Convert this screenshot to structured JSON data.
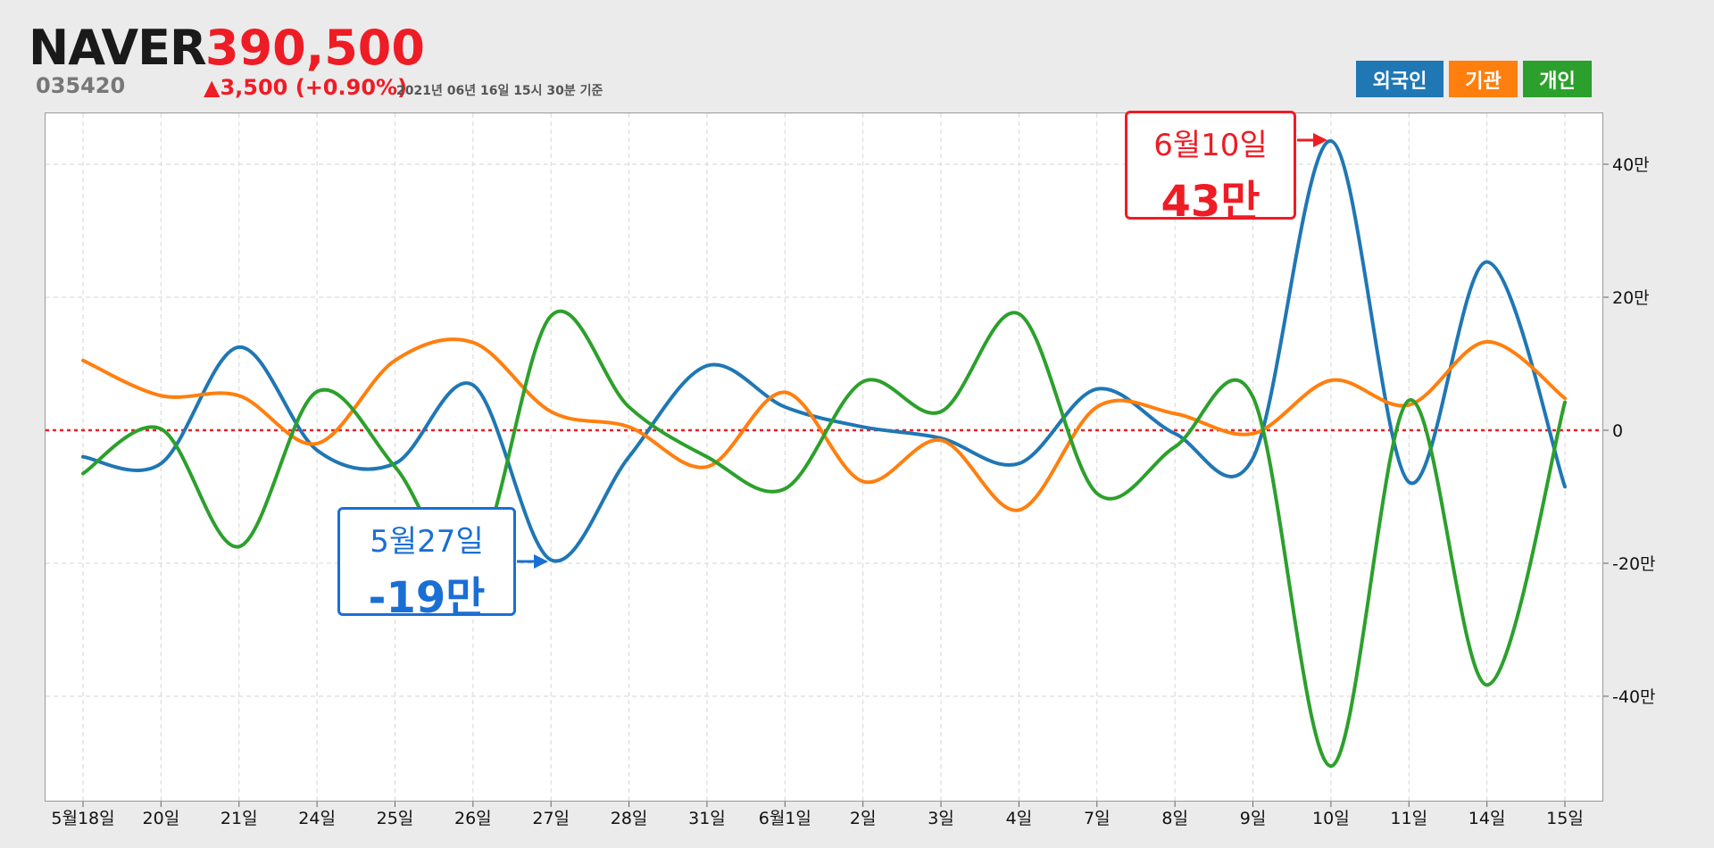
{
  "header": {
    "name": "NAVER",
    "code": "035420",
    "price": "390,500",
    "change": "▲3,500 (+0.90%)",
    "asof": "2021년 06년 16일 15시 30분 기준"
  },
  "legend": [
    {
      "label": "외국인",
      "color": "#1f77b4"
    },
    {
      "label": "기관",
      "color": "#ff7f0e"
    },
    {
      "label": "개인",
      "color": "#2ca02c"
    }
  ],
  "callouts": [
    {
      "date": "6월10일",
      "value": "43만",
      "color": "#ee1c25"
    },
    {
      "date": "5월27일",
      "value": "-19만",
      "color": "#1a6fd4"
    }
  ],
  "chart_data": {
    "type": "line",
    "categories": [
      "5월18일",
      "20일",
      "21일",
      "24일",
      "25일",
      "26일",
      "27일",
      "28일",
      "31일",
      "6월1일",
      "2일",
      "3일",
      "4일",
      "7일",
      "8일",
      "9일",
      "10일",
      "11일",
      "14일",
      "15일"
    ],
    "y_ticks": [
      {
        "value": 400000,
        "label": "40만"
      },
      {
        "value": 200000,
        "label": "20만"
      },
      {
        "value": 0,
        "label": "0"
      },
      {
        "value": -200000,
        "label": "-20만"
      },
      {
        "value": -400000,
        "label": "-40만"
      }
    ],
    "ylim": [
      -560000,
      480000
    ],
    "zero_line": {
      "color": "#ee1c25",
      "style": "dotted"
    },
    "grid": true,
    "legend_position": "top-right",
    "series": [
      {
        "name": "외국인",
        "color": "#1f77b4",
        "values": [
          -40000,
          -50000,
          125000,
          -30000,
          -50000,
          68000,
          -195000,
          -40000,
          97000,
          35000,
          5000,
          -12000,
          -50000,
          62000,
          -5000,
          -42000,
          435000,
          -78000,
          253000,
          -85000
        ]
      },
      {
        "name": "기관",
        "color": "#ff7f0e",
        "values": [
          105000,
          52000,
          52000,
          -20000,
          105000,
          132000,
          28000,
          5000,
          -55000,
          57000,
          -77000,
          -15000,
          -120000,
          35000,
          25000,
          -5000,
          75000,
          38000,
          133000,
          48000
        ]
      },
      {
        "name": "개인",
        "color": "#2ca02c",
        "values": [
          -65000,
          2000,
          -175000,
          58000,
          -55000,
          -205000,
          172000,
          35000,
          -40000,
          -88000,
          73000,
          28000,
          175000,
          -95000,
          -25000,
          50000,
          -505000,
          45000,
          -383000,
          42000
        ]
      }
    ]
  }
}
